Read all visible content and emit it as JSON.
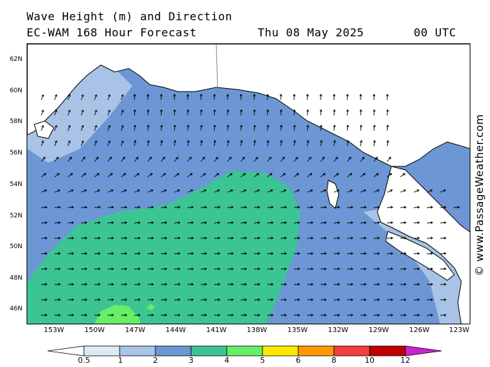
{
  "header": {
    "title_line1": "Wave Height (m) and Direction",
    "title_line2": "EC-WAM 168 Hour Forecast",
    "forecast_date": "Thu 08 May 2025",
    "forecast_time": "00 UTC"
  },
  "copyright": "© www.PassageWeather.com",
  "map": {
    "lat_labels": [
      "62N",
      "60N",
      "58N",
      "56N",
      "54N",
      "52N",
      "50N",
      "48N",
      "46N"
    ],
    "lon_labels": [
      "153W",
      "150W",
      "147W",
      "144W",
      "141W",
      "138W",
      "135W",
      "132W",
      "129W",
      "126W",
      "123W"
    ]
  },
  "colorbar": {
    "tick_labels": [
      "0.5",
      "1",
      "2",
      "3",
      "4",
      "5",
      "6",
      "8",
      "10",
      "12"
    ],
    "colors": [
      "#dfe8f6",
      "#a8c3e6",
      "#6d96d4",
      "#3cc493",
      "#66ee66",
      "#ffe800",
      "#ff9a00",
      "#f04040",
      "#c00000",
      "#d020d0"
    ]
  },
  "colors": {
    "ocean_3_4m": "#3cc493",
    "ocean_2_3m": "#6d96d4",
    "ocean_1_2m": "#a8c3e6",
    "ocean_05_1m": "#dfe8f6",
    "land": "#ffffff"
  }
}
